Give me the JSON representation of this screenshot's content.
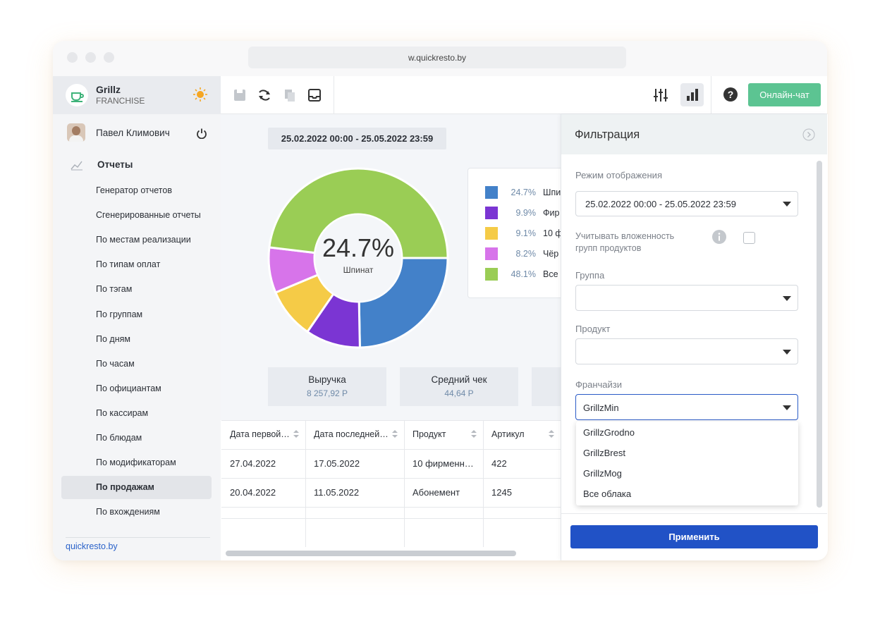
{
  "browser": {
    "url": "w.quickresto.by"
  },
  "sidebar": {
    "brand": "Grillz",
    "subtitle": "FRANCHISE",
    "user": "Павел Климович",
    "section": "Отчеты",
    "menu": [
      "Генератор отчетов",
      "Сгенерированные отчеты",
      "По местам реализации",
      "По типам оплат",
      "По тэгам",
      "По группам",
      "По дням",
      "По часам",
      "По официантам",
      "По кассирам",
      "По блюдам",
      "По модификаторам",
      "По продажам",
      "По вхождениям"
    ],
    "footer": "quickresto.by"
  },
  "toolbar": {
    "chat_button": "Онлайн-чат"
  },
  "report": {
    "date_range": "25.02.2022 00:00 - 25.05.2022 23:59",
    "kpis": [
      {
        "label": "Выручка",
        "value": "8 257,92 Р"
      },
      {
        "label": "Средний чек",
        "value": "44,64 Р"
      }
    ],
    "table": {
      "headers": [
        "Дата первой…",
        "Дата последней…",
        "Продукт",
        "Артикул"
      ],
      "rows": [
        [
          "27.04.2022",
          "17.05.2022",
          "10 фирменн…",
          "422"
        ],
        [
          "20.04.2022",
          "11.05.2022",
          "Абонемент",
          "1245"
        ]
      ]
    }
  },
  "chart_data": {
    "type": "donut",
    "categories": [
      "Шпи",
      "Фир",
      "10 ф",
      "Чёр",
      "Все"
    ],
    "values": [
      24.7,
      9.9,
      9.1,
      8.2,
      48.1
    ],
    "value_labels": [
      "24.7%",
      "9.9%",
      "9.1%",
      "8.2%",
      "48.1%"
    ],
    "colors": [
      "#4381c9",
      "#7b35d3",
      "#f5cb47",
      "#d774ea",
      "#9acd55"
    ],
    "center_label": "Шпинат"
  },
  "filter": {
    "title": "Фильтрация",
    "mode_label": "Режим отображения",
    "mode_value": "25.02.2022 00:00 - 25.05.2022 23:59",
    "nested_label": [
      "Учитывать вложенность",
      "групп продуктов"
    ],
    "group_label": "Группа",
    "product_label": "Продукт",
    "franchise_label": "Франчайзи",
    "franchise_value": "GrillzMin",
    "options": [
      "GrillzGrodno",
      "GrillzBrest",
      "GrillzMog",
      "Все облака"
    ],
    "apply_button": "Применить"
  }
}
